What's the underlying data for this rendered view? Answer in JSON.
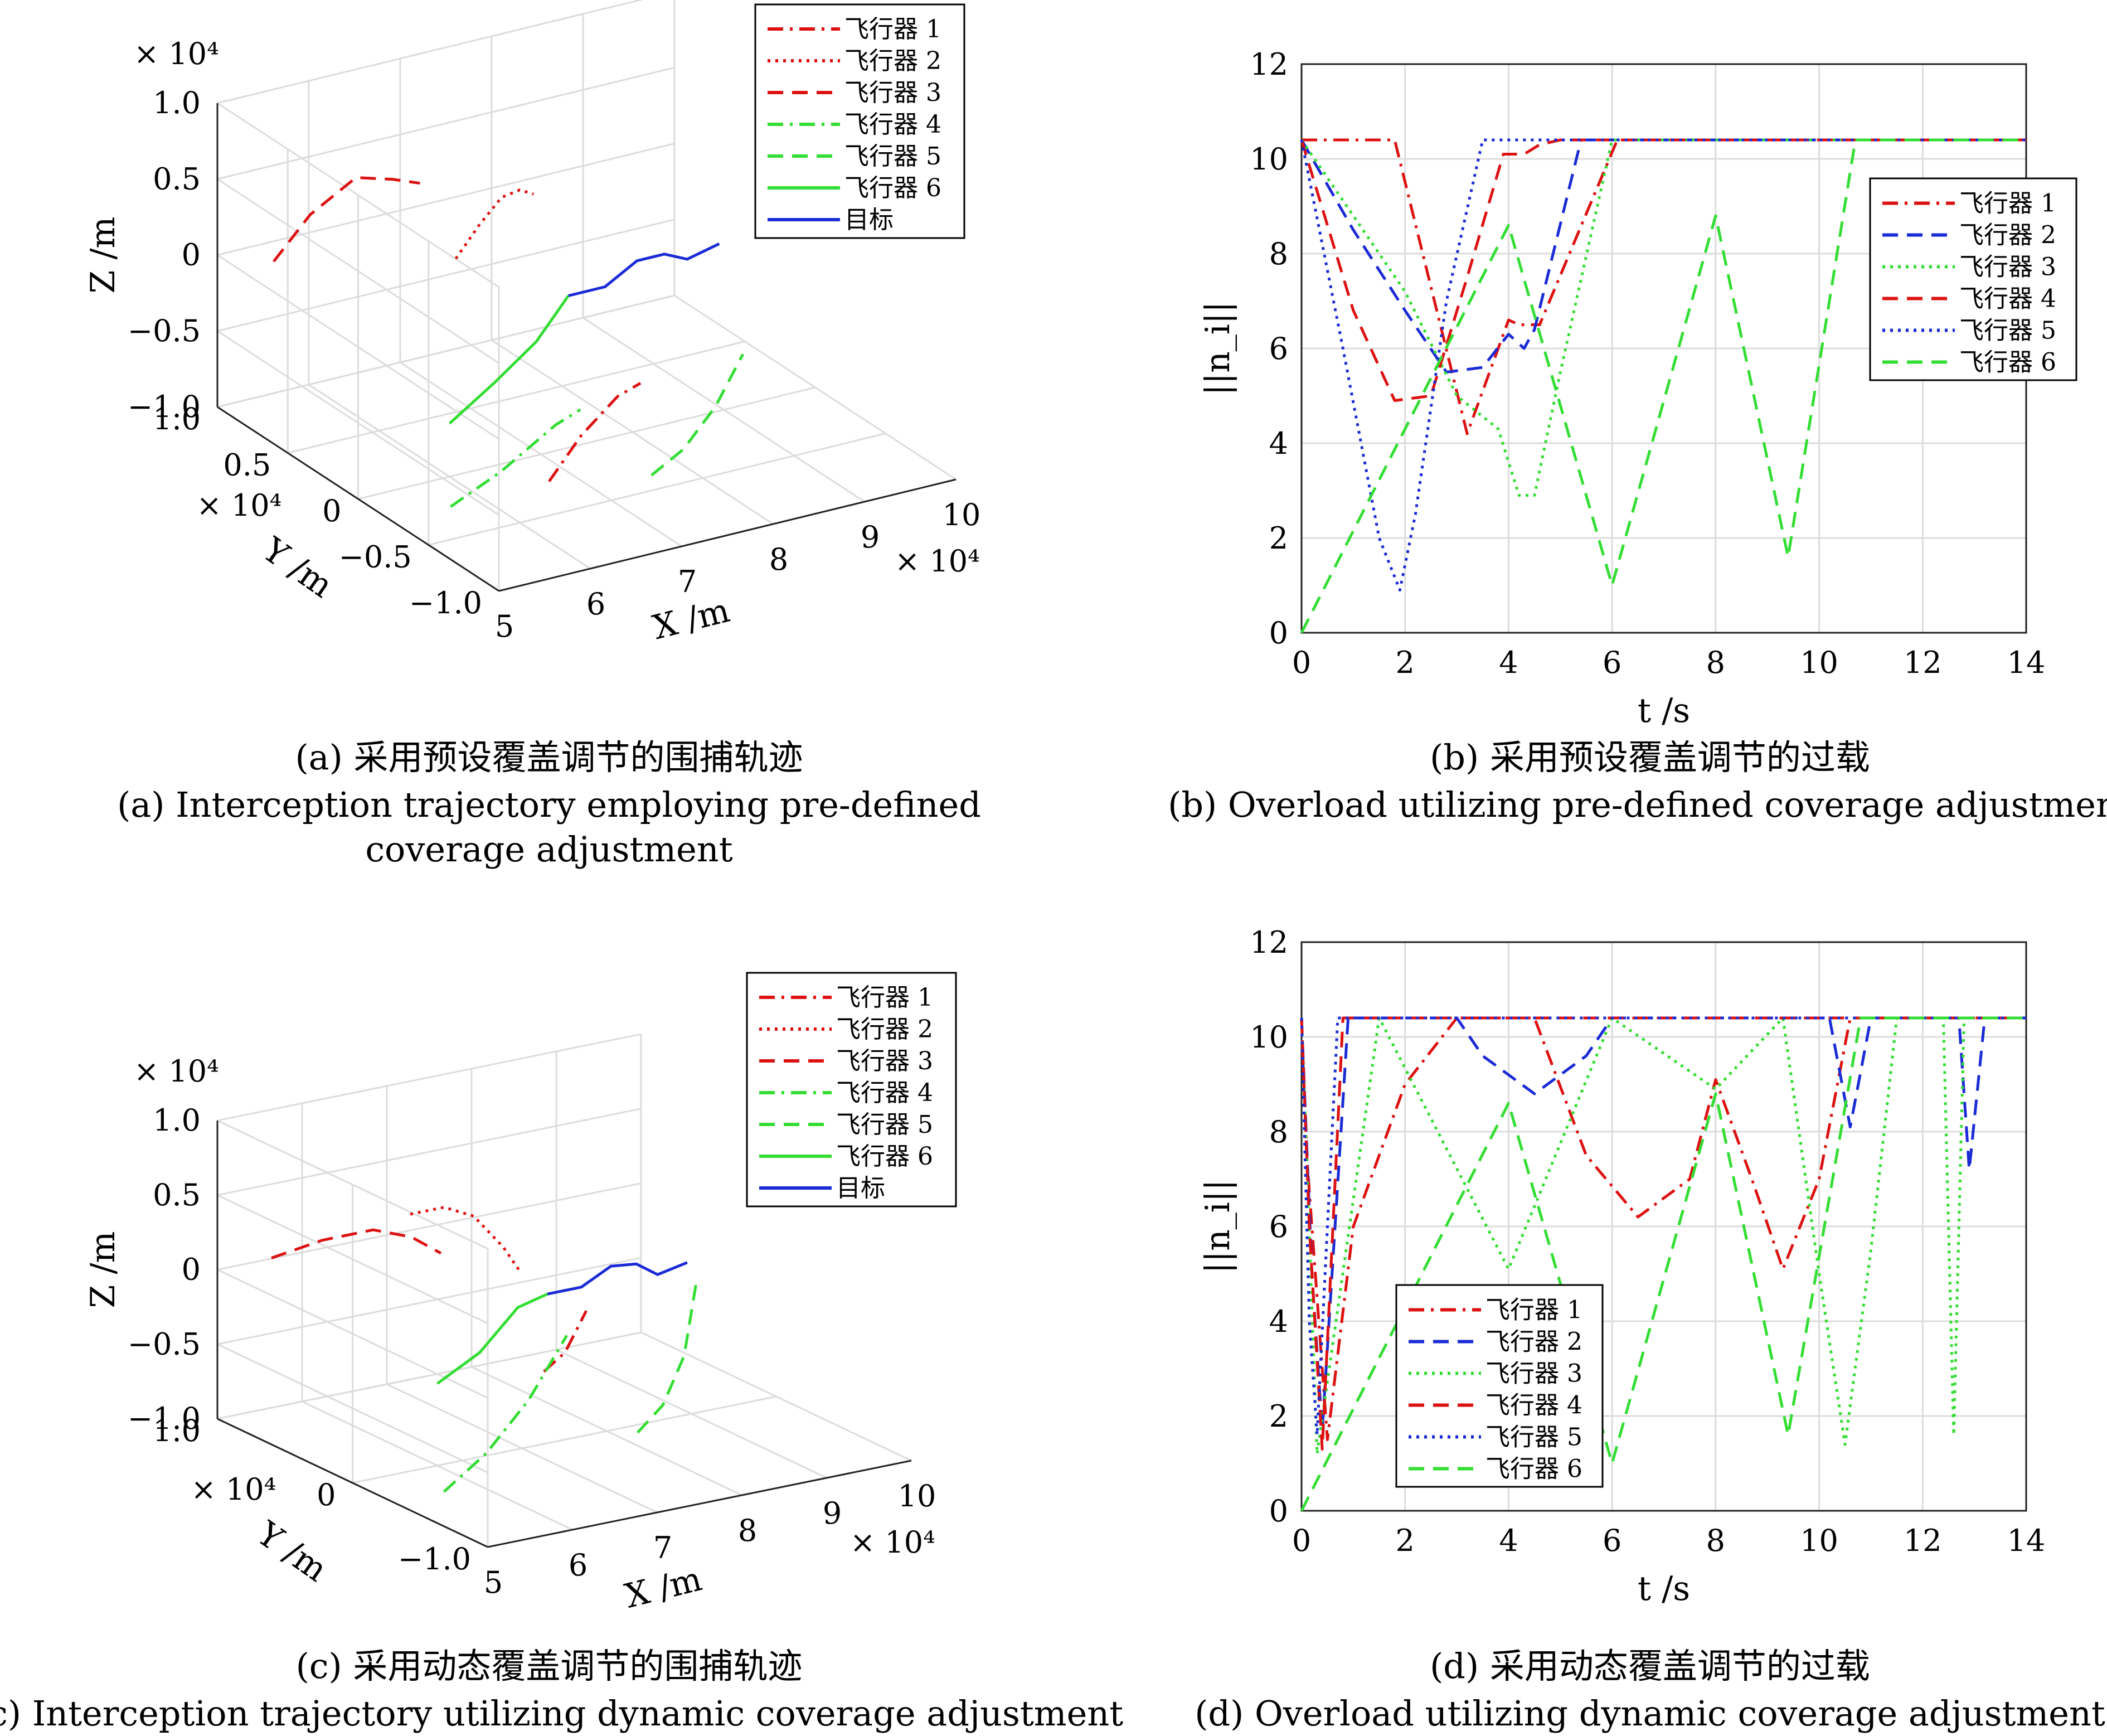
{
  "colors": {
    "red": "#dd1111",
    "blue": "#1a2bd6",
    "green": "#33dd33",
    "target": "#1a2bd6"
  },
  "panels": {
    "a": {
      "caption_cn": "(a) 采用预设覆盖调节的围捕轨迹",
      "caption_en_1": "(a) Interception trajectory employing pre-defined",
      "caption_en_2": "coverage adjustment"
    },
    "b": {
      "caption_cn": "(b) 采用预设覆盖调节的过载",
      "caption_en_1": "(b) Overload utilizing pre-defined coverage adjustment"
    },
    "c": {
      "caption_cn": "(c) 采用动态覆盖调节的围捕轨迹",
      "caption_en_1": "(c) Interception trajectory utilizing dynamic coverage adjustment"
    },
    "d": {
      "caption_cn": "(d) 采用动态覆盖调节的过载",
      "caption_en_1": "(d) Overload utilizing dynamic coverage adjustment"
    }
  },
  "chart_data": [
    {
      "id": "a",
      "type": "line3d",
      "xlabel": "X /m",
      "ylabel": "Y /m",
      "zlabel": "Z /m",
      "x_ticks": [
        "5",
        "6",
        "7",
        "8",
        "9",
        "10"
      ],
      "x_exp": "× 10⁴",
      "y_ticks": [
        "1.0",
        "0.5",
        "0",
        "−0.5",
        "−1.0"
      ],
      "y_exp": "× 10⁴",
      "z_ticks": [
        "1.0",
        "0.5",
        "0",
        "−0.5",
        "−1.0"
      ],
      "z_exp": "× 10⁴",
      "xlim": [
        5,
        10
      ],
      "ylim": [
        -1.0,
        1.0
      ],
      "zlim": [
        -1.0,
        1.0
      ],
      "legend_position": "top-right",
      "series": [
        {
          "name": "飞行器 1",
          "style": "dashdot",
          "color": "red",
          "points": [
            [
              6.55,
              -0.35,
              -0.9
            ],
            [
              6.9,
              -0.35,
              -0.65
            ],
            [
              7.3,
              -0.35,
              -0.45
            ],
            [
              7.55,
              -0.35,
              -0.4
            ]
          ]
        },
        {
          "name": "飞行器 2",
          "style": "dotted",
          "color": "red",
          "points": [
            [
              6.3,
              0.15,
              0.3
            ],
            [
              6.55,
              0.15,
              0.48
            ],
            [
              6.8,
              0.15,
              0.63
            ],
            [
              7.0,
              0.15,
              0.65
            ],
            [
              7.15,
              0.15,
              0.6
            ]
          ]
        },
        {
          "name": "飞行器 3",
          "style": "dashed",
          "color": "red",
          "points": [
            [
              5.0,
              0.6,
              0.2
            ],
            [
              5.4,
              0.6,
              0.45
            ],
            [
              5.9,
              0.6,
              0.62
            ],
            [
              6.3,
              0.6,
              0.55
            ],
            [
              6.6,
              0.6,
              0.48
            ]
          ]
        },
        {
          "name": "飞行器 4",
          "style": "dashdot",
          "color": "green",
          "points": [
            [
              5.55,
              -0.3,
              -0.95
            ],
            [
              6.1,
              -0.3,
              -0.8
            ],
            [
              6.7,
              -0.3,
              -0.58
            ],
            [
              6.97,
              -0.3,
              -0.52
            ]
          ]
        },
        {
          "name": "飞行器 5",
          "style": "dashed",
          "color": "green",
          "points": [
            [
              6.7,
              -0.98,
              -0.5
            ],
            [
              7.05,
              -0.98,
              -0.38
            ],
            [
              7.4,
              -0.98,
              -0.15
            ],
            [
              7.7,
              -0.98,
              0.15
            ]
          ]
        },
        {
          "name": "飞行器 6",
          "style": "solid",
          "color": "green",
          "points": [
            [
              6.0,
              0.0,
              -0.65
            ],
            [
              6.5,
              0.0,
              -0.45
            ],
            [
              6.95,
              0.0,
              -0.25
            ],
            [
              7.3,
              0.0,
              0.0
            ]
          ]
        },
        {
          "name": "目标",
          "style": "solid",
          "color": "target",
          "points": [
            [
              7.3,
              0.0,
              0.0
            ],
            [
              7.7,
              0.0,
              0.0
            ],
            [
              8.05,
              0.0,
              0.12
            ],
            [
              8.35,
              0.0,
              0.12
            ],
            [
              8.6,
              0.0,
              0.05
            ],
            [
              8.95,
              0.0,
              0.1
            ]
          ]
        }
      ]
    },
    {
      "id": "b",
      "type": "line",
      "xlabel": "t /s",
      "ylabel": "||n_i||",
      "xlim": [
        0,
        14
      ],
      "ylim": [
        0,
        12
      ],
      "x_ticks": [
        0,
        2,
        4,
        6,
        8,
        10,
        12,
        14
      ],
      "y_ticks": [
        0,
        2,
        4,
        6,
        8,
        10,
        12
      ],
      "grid": true,
      "legend_position": "top-right",
      "series": [
        {
          "name": "飞行器 1",
          "style": "dashdot",
          "color": "red",
          "x": [
            0,
            1.8,
            3.2,
            4.0,
            4.2,
            4.6,
            6.1,
            14
          ],
          "y": [
            10.4,
            10.4,
            4.2,
            6.6,
            6.5,
            6.5,
            10.4,
            10.4
          ]
        },
        {
          "name": "飞行器 2",
          "style": "dashed",
          "color": "blue",
          "x": [
            0,
            1.0,
            2.0,
            2.8,
            3.5,
            4.0,
            4.3,
            4.5,
            5.4,
            14
          ],
          "y": [
            10.4,
            8.5,
            6.8,
            5.5,
            5.6,
            6.3,
            6.0,
            6.4,
            10.4,
            10.4
          ]
        },
        {
          "name": "飞行器 3",
          "style": "dotted",
          "color": "green",
          "x": [
            0,
            2.0,
            3.0,
            3.8,
            4.2,
            4.5,
            5.0,
            6.0,
            14
          ],
          "y": [
            10.4,
            7.2,
            5.0,
            4.3,
            2.9,
            2.9,
            5.5,
            10.4,
            10.4
          ]
        },
        {
          "name": "飞行器 4",
          "style": "dashed",
          "color": "red",
          "x": [
            0,
            1.0,
            1.8,
            2.5,
            3.2,
            3.9,
            4.3,
            4.6,
            5.0,
            14
          ],
          "y": [
            10.4,
            6.8,
            4.9,
            5.0,
            7.5,
            10.1,
            10.1,
            10.3,
            10.4,
            10.4
          ]
        },
        {
          "name": "飞行器 5",
          "style": "dotted",
          "color": "blue",
          "x": [
            0,
            0.8,
            1.5,
            1.9,
            2.2,
            2.8,
            3.5,
            14
          ],
          "y": [
            10.4,
            6.0,
            2.0,
            0.9,
            2.5,
            7.0,
            10.4,
            10.4
          ]
        },
        {
          "name": "飞行器 6",
          "style": "dashed",
          "color": "green",
          "x": [
            0,
            4.0,
            6.0,
            8.0,
            9.4,
            10.7,
            14
          ],
          "y": [
            0,
            8.6,
            1.0,
            8.8,
            1.6,
            10.4,
            10.4
          ]
        }
      ]
    },
    {
      "id": "c",
      "type": "line3d",
      "xlabel": "X /m",
      "ylabel": "Y /m",
      "zlabel": "Z /m",
      "x_ticks": [
        "5",
        "6",
        "7",
        "8",
        "9",
        "10"
      ],
      "x_exp": "× 10⁴",
      "y_ticks": [
        "1.0",
        "0",
        "−1.0"
      ],
      "y_exp": "× 10⁴",
      "z_ticks": [
        "1.0",
        "0.5",
        "0",
        "−0.5",
        "−1.0"
      ],
      "z_exp": "× 10⁴",
      "xlim": [
        5,
        10
      ],
      "ylim": [
        -1.0,
        1.0
      ],
      "zlim": [
        -1.0,
        1.0
      ],
      "legend_position": "top-right",
      "series": [
        {
          "name": "飞行器 1",
          "style": "dashdot",
          "color": "red",
          "points": [
            [
              6.7,
              -0.35,
              -0.3
            ],
            [
              6.95,
              -0.35,
              -0.2
            ],
            [
              7.2,
              -0.35,
              0.05
            ]
          ]
        },
        {
          "name": "飞行器 2",
          "style": "dotted",
          "color": "red",
          "points": [
            [
              6.0,
              0.2,
              0.6
            ],
            [
              6.4,
              0.2,
              0.6
            ],
            [
              6.75,
              0.2,
              0.5
            ],
            [
              7.1,
              0.2,
              0.25
            ],
            [
              7.28,
              0.2,
              0.08
            ]
          ]
        },
        {
          "name": "飞行器 3",
          "style": "dashed",
          "color": "red",
          "points": [
            [
              5.0,
              0.6,
              0.25
            ],
            [
              5.6,
              0.6,
              0.3
            ],
            [
              6.2,
              0.6,
              0.3
            ],
            [
              6.65,
              0.6,
              0.2
            ],
            [
              7.0,
              0.6,
              0.05
            ]
          ]
        },
        {
          "name": "飞行器 4",
          "style": "dashdot",
          "color": "green",
          "points": [
            [
              5.6,
              -0.3,
              -1.0
            ],
            [
              6.1,
              -0.3,
              -0.8
            ],
            [
              6.6,
              -0.3,
              -0.5
            ],
            [
              7.05,
              -0.3,
              -0.12
            ]
          ]
        },
        {
          "name": "飞行器 5",
          "style": "dashed",
          "color": "green",
          "points": [
            [
              6.8,
              -0.98,
              -0.45
            ],
            [
              7.1,
              -0.98,
              -0.3
            ],
            [
              7.35,
              -0.98,
              0.0
            ],
            [
              7.5,
              -0.98,
              0.5
            ]
          ]
        },
        {
          "name": "飞行器 6",
          "style": "solid",
          "color": "green",
          "points": [
            [
              6.0,
              0.0,
              -0.45
            ],
            [
              6.5,
              0.0,
              -0.3
            ],
            [
              6.95,
              0.0,
              -0.05
            ],
            [
              7.3,
              0.0,
              0.0
            ]
          ]
        },
        {
          "name": "目标",
          "style": "solid",
          "color": "target",
          "points": [
            [
              7.3,
              0.0,
              0.0
            ],
            [
              7.7,
              0.0,
              0.0
            ],
            [
              8.05,
              0.0,
              0.1
            ],
            [
              8.35,
              0.0,
              0.08
            ],
            [
              8.6,
              0.0,
              -0.02
            ],
            [
              8.95,
              0.0,
              0.02
            ]
          ]
        }
      ]
    },
    {
      "id": "d",
      "type": "line",
      "xlabel": "t /s",
      "ylabel": "||n_i||",
      "xlim": [
        0,
        14
      ],
      "ylim": [
        0,
        12
      ],
      "x_ticks": [
        0,
        2,
        4,
        6,
        8,
        10,
        12,
        14
      ],
      "y_ticks": [
        0,
        2,
        4,
        6,
        8,
        10,
        12
      ],
      "grid": true,
      "legend_position": "bottom-left",
      "series": [
        {
          "name": "飞行器 1",
          "style": "dashdot",
          "color": "red",
          "x": [
            0,
            0.1,
            0.5,
            1.0,
            2.0,
            3.0,
            4.5,
            5.5,
            6.5,
            7.5,
            8.0,
            8.7,
            9.3,
            10.0,
            10.6,
            11.0,
            14
          ],
          "y": [
            10.4,
            7.5,
            1.5,
            6.0,
            9.0,
            10.4,
            10.4,
            7.5,
            6.2,
            7.0,
            9.1,
            7.0,
            5.1,
            7.0,
            10.4,
            10.4,
            10.4
          ]
        },
        {
          "name": "飞行器 2",
          "style": "dashed",
          "color": "blue",
          "x": [
            0,
            0.2,
            0.4,
            0.9,
            3.0,
            3.5,
            4.5,
            5.5,
            6.0,
            10.2,
            10.6,
            11.0,
            12.7,
            12.9,
            13.2,
            14
          ],
          "y": [
            10.4,
            5.0,
            1.7,
            10.4,
            10.4,
            9.6,
            8.8,
            9.6,
            10.4,
            10.4,
            8.1,
            10.4,
            10.4,
            7.2,
            10.4,
            10.4
          ]
        },
        {
          "name": "飞行器 3",
          "style": "dotted",
          "color": "green",
          "x": [
            0,
            0.3,
            1.5,
            4.0,
            6.0,
            8.0,
            9.3,
            10.0,
            10.5,
            11.0,
            11.5,
            12.4,
            12.6,
            12.8,
            14
          ],
          "y": [
            10.4,
            1.2,
            10.4,
            5.1,
            10.4,
            8.9,
            10.4,
            5.0,
            1.4,
            5.5,
            10.4,
            10.4,
            1.6,
            10.4,
            10.4
          ]
        },
        {
          "name": "飞行器 4",
          "style": "dashed",
          "color": "red",
          "x": [
            0,
            0.15,
            0.4,
            0.8,
            14
          ],
          "y": [
            10.4,
            6.0,
            1.3,
            10.4,
            10.4
          ]
        },
        {
          "name": "飞行器 5",
          "style": "dotted",
          "color": "blue",
          "x": [
            0,
            0.15,
            0.3,
            0.7,
            14
          ],
          "y": [
            10.4,
            4.0,
            1.6,
            10.4,
            10.4
          ]
        },
        {
          "name": "飞行器 6",
          "style": "dashed",
          "color": "green",
          "x": [
            0,
            4.0,
            6.0,
            8.0,
            9.4,
            10.8,
            14
          ],
          "y": [
            0,
            8.6,
            1.0,
            8.8,
            1.6,
            10.4,
            10.4
          ]
        }
      ]
    }
  ]
}
